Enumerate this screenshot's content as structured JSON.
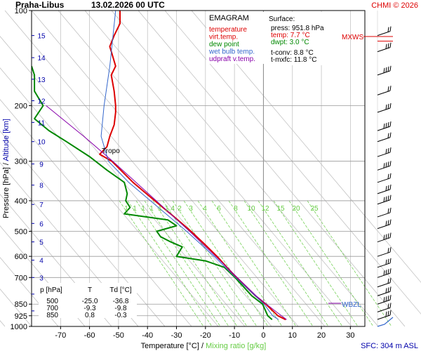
{
  "header": {
    "station": "Praha-Libus",
    "datetime": "13.02.2026 00 UTC",
    "copyright": "CHMI © 2026"
  },
  "axes": {
    "ylabel_pressure": "Pressure [hPa]",
    "ylabel_sep": "/",
    "ylabel_altitude": "Altitude [km]",
    "xlabel_temperature": "Temperature [°C]",
    "xlabel_sep": "/",
    "xlabel_mixing": "Mixing ratio [g/kg]",
    "sfc_note": "SFC: 304 m ASL"
  },
  "legend": {
    "title": "EMAGRAM",
    "items": [
      {
        "label": "temperature",
        "color": "#dd0000"
      },
      {
        "label": "virt.temp.",
        "color": "#dd0000"
      },
      {
        "label": "dew point",
        "color": "#008800"
      },
      {
        "label": "wet bulb temp.",
        "color": "#3366cc"
      },
      {
        "label": "udpraft v.temp.",
        "color": "#8800aa"
      }
    ]
  },
  "surface": {
    "title": "Surface:",
    "press": "press: 951.8 hPa",
    "temp": "temp: 7.7 °C",
    "dwpt": "dwpt: 3.0 °C",
    "tconv": "t-conv: 8.8 °C",
    "tmxfc": "t-mxfc: 11.8 °C"
  },
  "table": {
    "headers": [
      "p [hPa]",
      "T",
      "Td [°C]"
    ],
    "rows": [
      [
        "500",
        "-25.0",
        "-36.8"
      ],
      [
        "700",
        "-9.3",
        "-9.8"
      ],
      [
        "850",
        "0.8",
        "-0.3"
      ]
    ]
  },
  "annotations": {
    "tropo": "Tropo",
    "mxws": "MXWS",
    "wbzl": "WBZL"
  },
  "mixing_labels": [
    "1",
    "1",
    "1",
    "1",
    "1",
    "1.4",
    "2",
    "3",
    "4",
    "6",
    "8",
    "10",
    "12",
    "15",
    "20",
    "25"
  ],
  "chart_data": {
    "type": "line",
    "y_scale": "log",
    "ylim": [
      1000,
      100
    ],
    "xlim": [
      -80,
      35
    ],
    "x_ticks": [
      -70,
      -60,
      -50,
      -40,
      -30,
      -20,
      -10,
      0,
      10,
      20,
      30
    ],
    "pressure_ticks": [
      100,
      200,
      300,
      400,
      500,
      600,
      700,
      850,
      925,
      1000
    ],
    "altitude_ticks": [
      {
        "km": 1,
        "p": 893
      },
      {
        "km": 2,
        "p": 790
      },
      {
        "km": 3,
        "p": 700
      },
      {
        "km": 4,
        "p": 617
      },
      {
        "km": 5,
        "p": 540
      },
      {
        "km": 6,
        "p": 472
      },
      {
        "km": 7,
        "p": 411
      },
      {
        "km": 8,
        "p": 357
      },
      {
        "km": 9,
        "p": 306
      },
      {
        "km": 10,
        "p": 260
      },
      {
        "km": 11,
        "p": 226
      },
      {
        "km": 12,
        "p": 193
      },
      {
        "km": 13,
        "p": 165
      },
      {
        "km": 14,
        "p": 141
      },
      {
        "km": 15,
        "p": 120
      }
    ],
    "series": [
      {
        "name": "temperature",
        "color": "#dd0000",
        "points": [
          [
            951.8,
            7.7
          ],
          [
            925,
            5.0
          ],
          [
            850,
            0.8
          ],
          [
            800,
            -2.8
          ],
          [
            700,
            -9.3
          ],
          [
            650,
            -12.6
          ],
          [
            600,
            -16.0
          ],
          [
            550,
            -20.2
          ],
          [
            500,
            -25.0
          ],
          [
            450,
            -30.8
          ],
          [
            400,
            -37.5
          ],
          [
            350,
            -45.0
          ],
          [
            300,
            -52.3
          ],
          [
            285,
            -56.5
          ],
          [
            270,
            -54.0
          ],
          [
            250,
            -53.0
          ],
          [
            230,
            -51.5
          ],
          [
            210,
            -51.0
          ],
          [
            200,
            -51.0
          ],
          [
            180,
            -51.5
          ],
          [
            160,
            -52.5
          ],
          [
            150,
            -51.0
          ],
          [
            130,
            -53.0
          ],
          [
            120,
            -51.5
          ],
          [
            110,
            -49.5
          ],
          [
            100,
            -49.5
          ]
        ]
      },
      {
        "name": "dew point",
        "color": "#008800",
        "points": [
          [
            951.8,
            3.0
          ],
          [
            925,
            1.5
          ],
          [
            850,
            -0.3
          ],
          [
            800,
            -4.0
          ],
          [
            700,
            -9.8
          ],
          [
            650,
            -13.5
          ],
          [
            620,
            -20.0
          ],
          [
            600,
            -30.0
          ],
          [
            560,
            -28.0
          ],
          [
            540,
            -32.0
          ],
          [
            520,
            -35.5
          ],
          [
            500,
            -36.8
          ],
          [
            480,
            -30.0
          ],
          [
            460,
            -33.0
          ],
          [
            440,
            -48.0
          ],
          [
            420,
            -46.0
          ],
          [
            400,
            -47.5
          ],
          [
            380,
            -47.0
          ],
          [
            350,
            -48.0
          ],
          [
            320,
            -54.0
          ],
          [
            290,
            -60.0
          ],
          [
            260,
            -68.0
          ],
          [
            240,
            -74.0
          ],
          [
            220,
            -79.0
          ],
          [
            200,
            -76.0
          ],
          [
            180,
            -79.0
          ],
          [
            160,
            -79.0
          ],
          [
            150,
            -80.0
          ]
        ]
      },
      {
        "name": "wet bulb temp.",
        "color": "#3366cc",
        "points": [
          [
            951.8,
            5.2
          ],
          [
            925,
            3.2
          ],
          [
            850,
            0.2
          ],
          [
            700,
            -9.6
          ],
          [
            600,
            -17.0
          ],
          [
            500,
            -26.5
          ],
          [
            400,
            -39.0
          ],
          [
            350,
            -46.5
          ],
          [
            300,
            -53.5
          ],
          [
            250,
            -56.0
          ],
          [
            200,
            -55.0
          ],
          [
            150,
            -53.0
          ],
          [
            100,
            -51.0
          ]
        ]
      },
      {
        "name": "udpraft v.temp.",
        "color": "#8800aa",
        "points": [
          [
            951.8,
            8.0
          ],
          [
            900,
            4.5
          ],
          [
            850,
            1.0
          ],
          [
            800,
            -2.5
          ],
          [
            700,
            -9.0
          ],
          [
            600,
            -16.5
          ],
          [
            500,
            -25.5
          ],
          [
            400,
            -37.0
          ],
          [
            300,
            -52.0
          ],
          [
            250,
            -62.0
          ],
          [
            200,
            -75.0
          ]
        ]
      }
    ]
  }
}
